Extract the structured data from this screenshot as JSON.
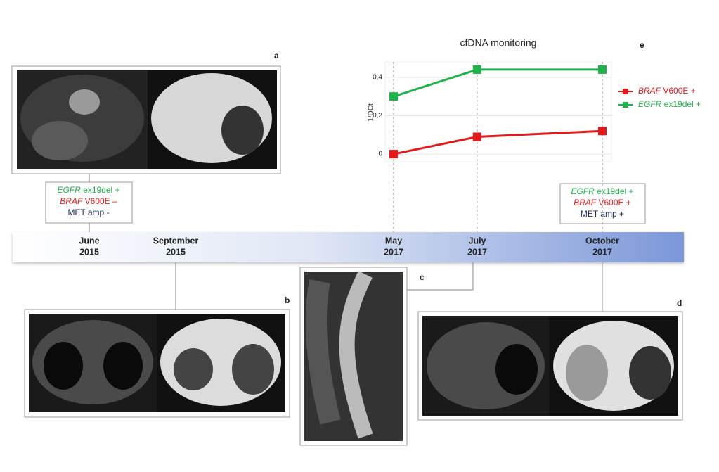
{
  "chart_data": {
    "type": "line",
    "title": "cfDNA monitoring",
    "y_label": "1/DCt",
    "x": [
      "2017-05",
      "2017-07",
      "2017-10"
    ],
    "xlim": [
      "2017-05",
      "2017-10"
    ],
    "ylim": [
      -0.04,
      0.48
    ],
    "yticks": [
      0,
      {
        "value": 0.2,
        "label": "0,2"
      },
      {
        "value": 0.4,
        "label": "0,4"
      }
    ],
    "grid": true,
    "series": [
      {
        "name": "BRAF V600E +",
        "color": "#e31a1c",
        "values": [
          0,
          0.09,
          0.12
        ]
      },
      {
        "name": "EGFR ex19del +",
        "color": "#1fb24a",
        "values": [
          0.3,
          0.44,
          0.44
        ]
      }
    ]
  },
  "panel_letters": [
    "a",
    "b",
    "c",
    "d",
    "e"
  ],
  "timeline": [
    {
      "month": "June",
      "year": "2015"
    },
    {
      "month": "September",
      "year": "2015"
    },
    {
      "month": "May",
      "year": "2017"
    },
    {
      "month": "July",
      "year": "2017"
    },
    {
      "month": "October",
      "year": "2017"
    }
  ],
  "status_boxes": [
    [
      "EGFR ex19del +",
      "BRAF V600E –",
      "MET amp -"
    ],
    [
      "EGFR ex19del +",
      "BRAF V600E +",
      "MET amp +"
    ]
  ]
}
